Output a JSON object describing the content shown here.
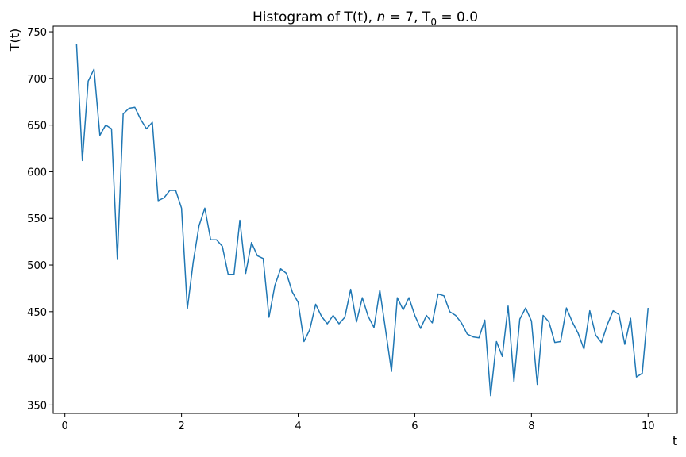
{
  "chart_data": {
    "type": "line",
    "title": {
      "prefix": "Histogram of T(t), ",
      "n_symbol": "n",
      "n_part": " = 7, T",
      "sub": "0",
      "suffix": " = 0.0"
    },
    "xlabel": "t",
    "ylabel": "T(t)",
    "xlim": [
      -0.2,
      10.5
    ],
    "ylim": [
      341,
      756
    ],
    "xticks": [
      0,
      2,
      4,
      6,
      8,
      10
    ],
    "xtick_labels": [
      "0",
      "2",
      "4",
      "6",
      "8",
      "10"
    ],
    "yticks": [
      350,
      400,
      450,
      500,
      550,
      600,
      650,
      700,
      750
    ],
    "ytick_labels": [
      "350",
      "400",
      "450",
      "500",
      "550",
      "600",
      "650",
      "700",
      "750"
    ],
    "grid": false,
    "line_color": "#1f77b4",
    "series": [
      {
        "x": [
          0.2,
          0.3,
          0.4,
          0.5,
          0.6,
          0.7,
          0.8,
          0.9,
          1.0,
          1.1,
          1.2,
          1.3,
          1.4,
          1.5,
          1.6,
          1.7,
          1.8,
          1.9,
          2.0,
          2.1,
          2.2,
          2.3,
          2.4,
          2.5,
          2.6,
          2.7,
          2.8,
          2.9,
          3.0,
          3.1,
          3.2,
          3.3,
          3.4,
          3.5,
          3.6,
          3.7,
          3.8,
          3.9,
          4.0,
          4.1,
          4.2,
          4.3,
          4.4,
          4.5,
          4.6,
          4.7,
          4.8,
          4.9,
          5.0,
          5.1,
          5.2,
          5.3,
          5.4,
          5.5,
          5.6,
          5.7,
          5.8,
          5.9,
          6.0,
          6.1,
          6.2,
          6.3,
          6.4,
          6.5,
          6.6,
          6.7,
          6.8,
          6.9,
          7.0,
          7.1,
          7.2,
          7.3,
          7.4,
          7.5,
          7.6,
          7.7,
          7.8,
          7.9,
          8.0,
          8.1,
          8.2,
          8.3,
          8.4,
          8.5,
          8.6,
          8.7,
          8.8,
          8.9,
          9.0,
          9.1,
          9.2,
          9.3,
          9.4,
          9.5,
          9.6,
          9.7,
          9.8,
          9.9,
          10.0
        ],
        "values": [
          737,
          612,
          697,
          710,
          639,
          650,
          646,
          506,
          662,
          668,
          669,
          656,
          646,
          653,
          569,
          572,
          580,
          580,
          561,
          453,
          503,
          542,
          561,
          527,
          527,
          520,
          490,
          490,
          548,
          491,
          524,
          510,
          507,
          444,
          478,
          496,
          491,
          471,
          460,
          418,
          431,
          458,
          445,
          437,
          446,
          437,
          444,
          474,
          439,
          465,
          445,
          433,
          473,
          430,
          386,
          465,
          452,
          465,
          446,
          432,
          446,
          438,
          469,
          467,
          450,
          446,
          438,
          426,
          423,
          422,
          441,
          360,
          418,
          402,
          456,
          375,
          442,
          454,
          440,
          372,
          446,
          439,
          417,
          418,
          454,
          439,
          427,
          410,
          451,
          425,
          417,
          436,
          451,
          447,
          415,
          443,
          380,
          384,
          454
        ]
      }
    ]
  }
}
